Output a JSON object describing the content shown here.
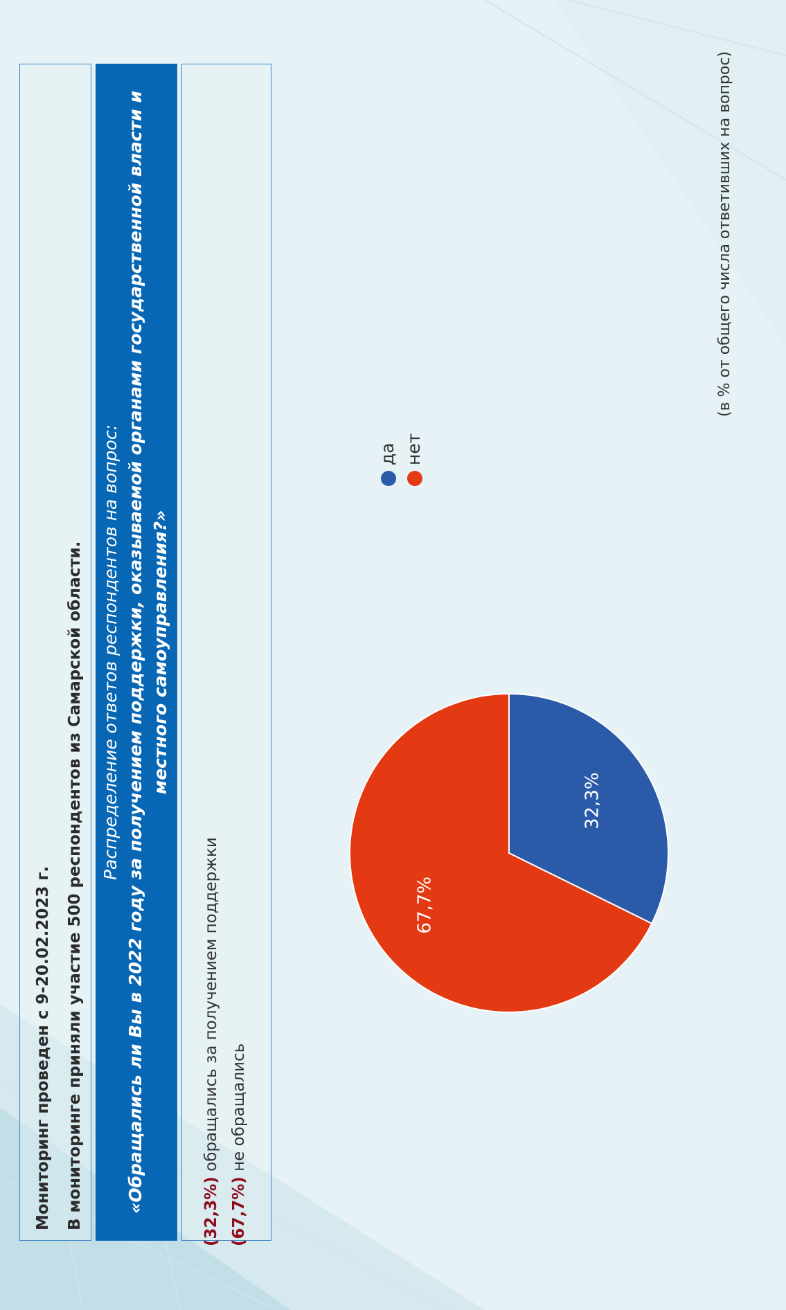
{
  "header": {
    "line1": "Мониторинг проведен с 9-20.02.2023 г.",
    "line2": "В мониторинге приняли участие 500 респондентов из Самарской области."
  },
  "banner": {
    "line1": "Распределение ответов респондентов на вопрос:",
    "line2": "«Обращались ли Вы в 2022 году за получением поддержки, оказываемой органами государственной власти и",
    "line3": "местного самоуправления?»"
  },
  "summary": {
    "yes_pct": "(32,3%)",
    "yes_text": " обращались за получением поддержки",
    "no_pct": "(67,7%)",
    "no_text": " не обращались"
  },
  "note": "(в % от  общего числа ответивших на вопрос)",
  "colors": {
    "yes": "#2a5aa8",
    "no": "#e33a13",
    "banner": "#0867b4"
  },
  "chart_data": {
    "type": "pie",
    "categories": [
      "да",
      "нет"
    ],
    "values": [
      32.3,
      67.7
    ],
    "labels": [
      "32,3%",
      "67,7%"
    ],
    "legend": "right"
  }
}
